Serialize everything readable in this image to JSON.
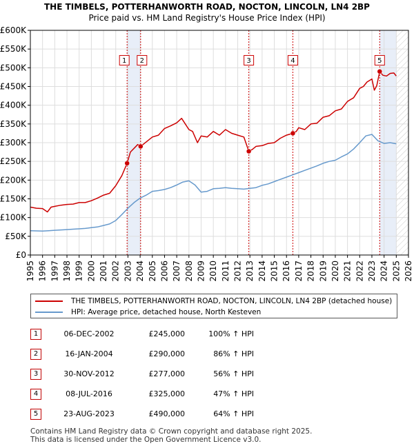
{
  "chart_data": {
    "type": "line",
    "title": "THE TIMBELS, POTTERHANWORTH ROAD, NOCTON, LINCOLN, LN4 2BP",
    "subtitle": "Price paid vs. HM Land Registry's House Price Index (HPI)",
    "xlabel": "",
    "ylabel": "",
    "xlim": [
      1995,
      2026
    ],
    "ylim": [
      0,
      600000
    ],
    "x_ticks": [
      "1995",
      "1996",
      "1997",
      "1998",
      "1999",
      "2000",
      "2001",
      "2002",
      "2003",
      "2004",
      "2005",
      "2006",
      "2007",
      "2008",
      "2009",
      "2010",
      "2011",
      "2012",
      "2013",
      "2014",
      "2015",
      "2016",
      "2017",
      "2018",
      "2019",
      "2020",
      "2021",
      "2022",
      "2023",
      "2024",
      "2025",
      "2026"
    ],
    "y_ticks": [
      {
        "value": 0,
        "label": "£0"
      },
      {
        "value": 50000,
        "label": "£50K"
      },
      {
        "value": 100000,
        "label": "£100K"
      },
      {
        "value": 150000,
        "label": "£150K"
      },
      {
        "value": 200000,
        "label": "£200K"
      },
      {
        "value": 250000,
        "label": "£250K"
      },
      {
        "value": 300000,
        "label": "£300K"
      },
      {
        "value": 350000,
        "label": "£350K"
      },
      {
        "value": 400000,
        "label": "£400K"
      },
      {
        "value": 450000,
        "label": "£450K"
      },
      {
        "value": 500000,
        "label": "£500K"
      },
      {
        "value": 550000,
        "label": "£550K"
      },
      {
        "value": 600000,
        "label": "£600K"
      }
    ],
    "grid": true,
    "legend_position": "below",
    "future_region_start": 2025.0,
    "series": [
      {
        "name": "THE TIMBELS, POTTERHANWORTH ROAD, NOCTON, LINCOLN, LN4 2BP (detached house)",
        "color": "#cc0000",
        "x": [
          1995,
          1995.5,
          1996,
          1996.4,
          1996.7,
          1997,
          1997.5,
          1998,
          1998.5,
          1999,
          1999.5,
          2000,
          2000.5,
          2001,
          2001.5,
          2002,
          2002.5,
          2002.93,
          2003.2,
          2003.5,
          2003.8,
          2004.04,
          2004.5,
          2005,
          2005.5,
          2006,
          2006.5,
          2007,
          2007.4,
          2007.7,
          2008,
          2008.3,
          2008.7,
          2009,
          2009.5,
          2010,
          2010.5,
          2011,
          2011.5,
          2012,
          2012.5,
          2012.91,
          2013.2,
          2013.5,
          2014,
          2014.5,
          2015,
          2015.5,
          2016,
          2016.52,
          2016.8,
          2017,
          2017.5,
          2018,
          2018.5,
          2019,
          2019.5,
          2020,
          2020.5,
          2021,
          2021.5,
          2022,
          2022.3,
          2022.6,
          2022.9,
          2023,
          2023.2,
          2023.4,
          2023.64,
          2023.9,
          2024.2,
          2024.5,
          2024.8,
          2025
        ],
        "y": [
          128000,
          125000,
          124000,
          115000,
          128000,
          130000,
          133000,
          135000,
          136000,
          140000,
          140000,
          145000,
          152000,
          160000,
          165000,
          185000,
          212000,
          245000,
          275000,
          285000,
          295000,
          290000,
          302000,
          315000,
          320000,
          338000,
          345000,
          353000,
          365000,
          350000,
          335000,
          330000,
          300000,
          318000,
          315000,
          330000,
          320000,
          335000,
          325000,
          320000,
          315000,
          277000,
          282000,
          290000,
          292000,
          298000,
          300000,
          312000,
          320000,
          325000,
          330000,
          340000,
          335000,
          350000,
          352000,
          368000,
          372000,
          385000,
          390000,
          410000,
          420000,
          445000,
          450000,
          462000,
          468000,
          470000,
          440000,
          452000,
          490000,
          480000,
          478000,
          485000,
          486000,
          478000
        ]
      },
      {
        "name": "HPI: Average price, detached house, North Kesteven",
        "color": "#6699cc",
        "x": [
          1995,
          1995.5,
          1996,
          1996.5,
          1997,
          1997.5,
          1998,
          1998.5,
          1999,
          1999.5,
          2000,
          2000.5,
          2001,
          2001.5,
          2002,
          2002.5,
          2003,
          2003.5,
          2004,
          2004.5,
          2005,
          2005.5,
          2006,
          2006.5,
          2007,
          2007.5,
          2008,
          2008.5,
          2009,
          2009.5,
          2010,
          2010.5,
          2011,
          2011.5,
          2012,
          2012.5,
          2013,
          2013.5,
          2014,
          2014.5,
          2015,
          2015.5,
          2016,
          2016.5,
          2017,
          2017.5,
          2018,
          2018.5,
          2019,
          2019.5,
          2020,
          2020.5,
          2021,
          2021.5,
          2022,
          2022.5,
          2023,
          2023.5,
          2024,
          2024.5,
          2025
        ],
        "y": [
          65000,
          64500,
          64000,
          65000,
          66000,
          67000,
          68000,
          69000,
          70000,
          71000,
          73000,
          75000,
          79000,
          83000,
          92000,
          108000,
          125000,
          140000,
          152000,
          160000,
          170000,
          172000,
          175000,
          180000,
          187000,
          195000,
          198000,
          187000,
          168000,
          170000,
          177000,
          178000,
          180000,
          178000,
          177000,
          176000,
          178000,
          180000,
          186000,
          190000,
          196000,
          202000,
          208000,
          214000,
          220000,
          226000,
          232000,
          238000,
          245000,
          250000,
          253000,
          262000,
          270000,
          283000,
          300000,
          318000,
          322000,
          305000,
          298000,
          300000,
          297000
        ]
      }
    ],
    "sales": [
      {
        "num": "1",
        "x": 2002.93,
        "price_value": 245000,
        "date": "06-DEC-2002",
        "price": "£245,000",
        "hpi": "100% ↑ HPI"
      },
      {
        "num": "2",
        "x": 2004.04,
        "price_value": 290000,
        "date": "16-JAN-2004",
        "price": "£290,000",
        "hpi": "86% ↑ HPI"
      },
      {
        "num": "3",
        "x": 2012.91,
        "price_value": 277000,
        "date": "30-NOV-2012",
        "price": "£277,000",
        "hpi": "56% ↑ HPI"
      },
      {
        "num": "4",
        "x": 2016.52,
        "price_value": 325000,
        "date": "08-JUL-2016",
        "price": "£325,000",
        "hpi": "47% ↑ HPI"
      },
      {
        "num": "5",
        "x": 2023.64,
        "price_value": 490000,
        "date": "23-AUG-2023",
        "price": "£490,000",
        "hpi": "64% ↑ HPI"
      }
    ]
  },
  "footer": {
    "line1": "Contains HM Land Registry data © Crown copyright and database right 2025.",
    "line2": "This data is licensed under the Open Government Licence v3.0."
  },
  "colors": {
    "price_line": "#cc0000",
    "hpi_line": "#6699cc",
    "sale_band": "#e8eef8",
    "sale_marker_border": "#cc0000"
  }
}
